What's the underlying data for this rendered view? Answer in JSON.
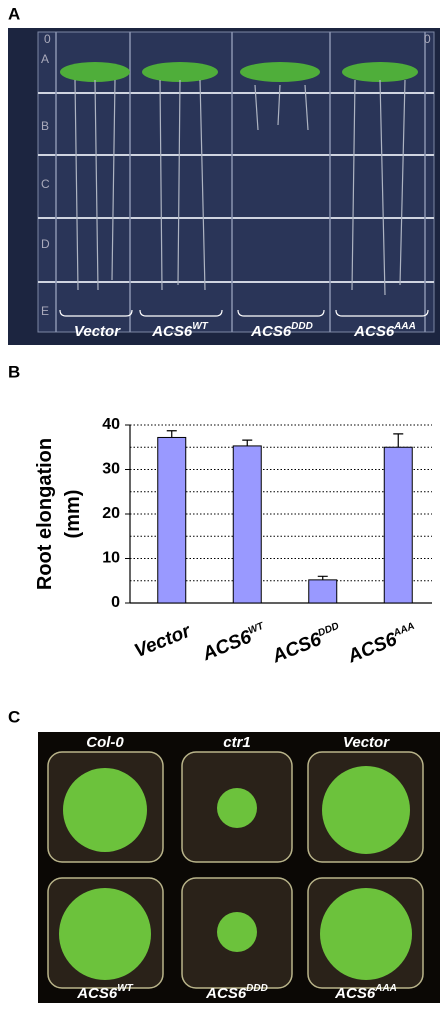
{
  "panel_a": {
    "label": "A",
    "scale_marks": [
      "0",
      "0"
    ],
    "row_labels": [
      "A",
      "B",
      "C",
      "D",
      "E"
    ],
    "lanes": [
      "Vector",
      "ACS6",
      "ACS6",
      "ACS6"
    ],
    "lane_superscripts": [
      null,
      "WT",
      "DDD",
      "AAA"
    ]
  },
  "chart_data": {
    "type": "bar",
    "label": "B",
    "ylabel": [
      "Root elongation",
      "(mm)"
    ],
    "categories": [
      "Vector",
      "ACS6",
      "ACS6",
      "ACS6"
    ],
    "category_superscripts": [
      null,
      "WT",
      "DDD",
      "AAA"
    ],
    "values": [
      37.2,
      35.3,
      5.2,
      35.0
    ],
    "errors": [
      1.5,
      1.3,
      0.8,
      3.0
    ],
    "color": "#9999ff",
    "ylim": [
      0,
      40
    ],
    "yticks": [
      0,
      10,
      20,
      30,
      40
    ],
    "gridlines": [
      5,
      10,
      15,
      20,
      25,
      30,
      35,
      40
    ]
  },
  "panel_c": {
    "label": "C",
    "pots": [
      "Col-0",
      "ctr1",
      "Vector",
      "ACS6",
      "ACS6",
      "ACS6"
    ],
    "pot_superscripts": [
      null,
      null,
      null,
      "WT",
      "DDD",
      "AAA"
    ]
  }
}
